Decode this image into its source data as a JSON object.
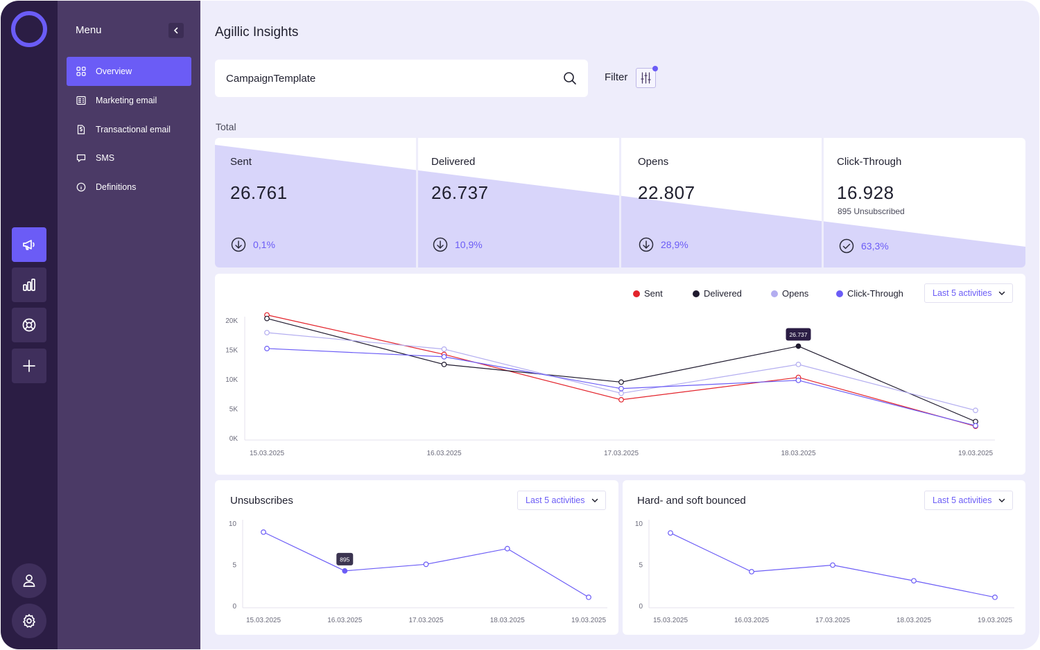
{
  "app": {
    "title": "Agillic Insights"
  },
  "rail": {
    "items": [
      {
        "icon": "megaphone-icon",
        "active": true
      },
      {
        "icon": "bar-chart-icon",
        "active": false
      },
      {
        "icon": "lifebuoy-icon",
        "active": false
      },
      {
        "icon": "plus-icon",
        "active": false
      }
    ],
    "bottom": [
      {
        "icon": "user-icon"
      },
      {
        "icon": "gear-icon"
      }
    ]
  },
  "menu": {
    "title": "Menu",
    "items": [
      {
        "label": "Overview",
        "icon": "grid-icon",
        "active": true
      },
      {
        "label": "Marketing email",
        "icon": "newsletter-icon",
        "active": false
      },
      {
        "label": "Transactional email",
        "icon": "receipt-icon",
        "active": false
      },
      {
        "label": "SMS",
        "icon": "chat-bubble-icon",
        "active": false
      },
      {
        "label": "Definitions",
        "icon": "info-icon",
        "active": false
      }
    ]
  },
  "search": {
    "value": "CampaignTemplate",
    "placeholder": ""
  },
  "filter": {
    "label": "Filter"
  },
  "totals": {
    "label": "Total",
    "cards": [
      {
        "label": "Sent",
        "value": "26.761",
        "sub": "",
        "pct": "0,1%",
        "icon": "arrow-down-circle-icon"
      },
      {
        "label": "Delivered",
        "value": "26.737",
        "sub": "",
        "pct": "10,9%",
        "icon": "arrow-down-circle-icon"
      },
      {
        "label": "Opens",
        "value": "22.807",
        "sub": "",
        "pct": "28,9%",
        "icon": "arrow-down-circle-icon"
      },
      {
        "label": "Click-Through",
        "value": "16.928",
        "sub": "895 Unsubscribed",
        "pct": "63,3%",
        "icon": "check-circle-icon"
      }
    ]
  },
  "main_chart": {
    "select": "Last 5 activities",
    "tooltip": "26.737"
  },
  "unsubscribes": {
    "title": "Unsubscribes",
    "select": "Last 5 activities",
    "tooltip": "895"
  },
  "bounced": {
    "title": "Hard- and soft bounced",
    "select": "Last 5 activities"
  },
  "colors": {
    "accent": "#6b5cf6",
    "sent": "#e3232b",
    "delivered": "#1f1a2e",
    "opens": "#b3adf0",
    "click_through": "#6b5cf6"
  },
  "chart_data": [
    {
      "type": "line",
      "x": [
        "15.03.2025",
        "16.03.2025",
        "17.03.2025",
        "18.03.2025",
        "19.03.2025"
      ],
      "ylim": [
        0,
        20000
      ],
      "yticks": [
        "20K",
        "15K",
        "10K",
        "5K",
        "0K"
      ],
      "legend": "top-right",
      "series": [
        {
          "name": "Sent",
          "values": [
            21000,
            14300,
            6600,
            10400,
            2100
          ],
          "color": "#e3232b"
        },
        {
          "name": "Delivered",
          "values": [
            20400,
            12600,
            9600,
            15700,
            2900
          ],
          "color": "#1f1a2e"
        },
        {
          "name": "Opens",
          "values": [
            18000,
            15200,
            7700,
            12600,
            4800
          ],
          "color": "#b3adf0"
        },
        {
          "name": "Click-Through",
          "values": [
            15300,
            13900,
            8500,
            9900,
            2200
          ],
          "color": "#6b5cf6"
        }
      ]
    },
    {
      "type": "line",
      "title": "Unsubscribes",
      "x": [
        "15.03.2025",
        "16.03.2025",
        "17.03.2025",
        "18.03.2025",
        "19.03.2025"
      ],
      "ylim": [
        0,
        10
      ],
      "yticks": [
        "10",
        "5",
        "0"
      ],
      "series": [
        {
          "values": [
            9,
            4.3,
            5.1,
            7,
            1.1
          ],
          "color": "#6b5cf6"
        }
      ]
    },
    {
      "type": "line",
      "title": "Hard- and soft bounced",
      "x": [
        "15.03.2025",
        "16.03.2025",
        "17.03.2025",
        "18.03.2025",
        "19.03.2025"
      ],
      "ylim": [
        0,
        10
      ],
      "yticks": [
        "10",
        "5",
        "0"
      ],
      "series": [
        {
          "values": [
            8.9,
            4.2,
            5,
            3.1,
            1.1
          ],
          "color": "#6b5cf6"
        }
      ]
    }
  ]
}
